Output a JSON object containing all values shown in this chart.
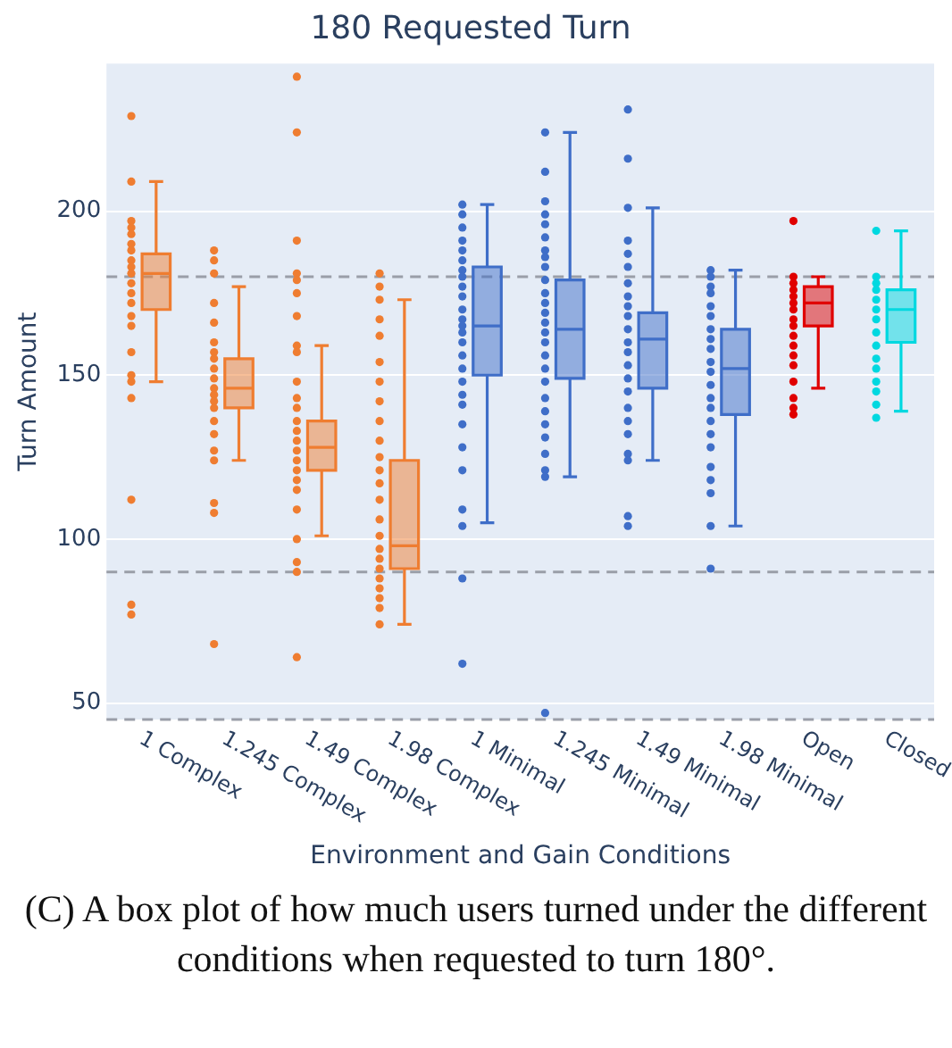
{
  "chart_data": {
    "type": "box",
    "title": "180 Requested Turn",
    "xlabel": "Environment and Gain Conditions",
    "ylabel": "Turn Amount",
    "categories": [
      "1 Complex",
      "1.245 Complex",
      "1.49 Complex",
      "1.98 Complex",
      "1 Minimal",
      "1.245 Minimal",
      "1.49 Minimal",
      "1.98 Minimal",
      "Open",
      "Closed"
    ],
    "colors": [
      "#ef7d31",
      "#ef7d31",
      "#ef7d31",
      "#ef7d31",
      "#3f6ec8",
      "#3f6ec8",
      "#3f6ec8",
      "#3f6ec8",
      "#e00000",
      "#00d8e0"
    ],
    "boxes": [
      {
        "low": 148,
        "q1": 170,
        "median": 181,
        "q3": 187,
        "high": 209
      },
      {
        "low": 124,
        "q1": 140,
        "median": 146,
        "q3": 155,
        "high": 177
      },
      {
        "low": 101,
        "q1": 121,
        "median": 128,
        "q3": 136,
        "high": 159
      },
      {
        "low": 74,
        "q1": 91,
        "median": 98,
        "q3": 124,
        "high": 173
      },
      {
        "low": 105,
        "q1": 150,
        "median": 165,
        "q3": 183,
        "high": 202
      },
      {
        "low": 119,
        "q1": 149,
        "median": 164,
        "q3": 179,
        "high": 224
      },
      {
        "low": 124,
        "q1": 146,
        "median": 161,
        "q3": 169,
        "high": 201
      },
      {
        "low": 104,
        "q1": 138,
        "median": 152,
        "q3": 164,
        "high": 182
      },
      {
        "low": 146,
        "q1": 165,
        "median": 172,
        "q3": 177,
        "high": 180
      },
      {
        "low": 139,
        "q1": 160,
        "median": 170,
        "q3": 176,
        "high": 194
      }
    ],
    "series": [
      {
        "type": "scatter",
        "color": "#ef7d31",
        "x": [
          "1 Complex",
          "1 Complex",
          "1 Complex",
          "1 Complex",
          "1 Complex",
          "1 Complex",
          "1 Complex",
          "1 Complex",
          "1 Complex",
          "1 Complex",
          "1 Complex",
          "1 Complex",
          "1 Complex",
          "1 Complex",
          "1 Complex",
          "1 Complex",
          "1 Complex",
          "1 Complex",
          "1 Complex",
          "1 Complex",
          "1 Complex",
          "1 Complex"
        ],
        "values": [
          229,
          209,
          197,
          195,
          193,
          190,
          188,
          185,
          183,
          181,
          178,
          175,
          172,
          168,
          165,
          157,
          150,
          148,
          143,
          112,
          80,
          77
        ]
      },
      {
        "type": "scatter",
        "color": "#ef7d31",
        "x": [
          "1.245 Complex",
          "1.245 Complex",
          "1.245 Complex",
          "1.245 Complex",
          "1.245 Complex",
          "1.245 Complex",
          "1.245 Complex",
          "1.245 Complex",
          "1.245 Complex",
          "1.245 Complex",
          "1.245 Complex",
          "1.245 Complex",
          "1.245 Complex",
          "1.245 Complex",
          "1.245 Complex",
          "1.245 Complex",
          "1.245 Complex",
          "1.245 Complex",
          "1.245 Complex",
          "1.245 Complex",
          "1.245 Complex"
        ],
        "values": [
          188,
          185,
          181,
          172,
          166,
          160,
          157,
          155,
          152,
          149,
          146,
          144,
          142,
          140,
          136,
          132,
          127,
          124,
          111,
          108,
          68
        ]
      },
      {
        "type": "scatter",
        "color": "#ef7d31",
        "x": [
          "1.49 Complex",
          "1.49 Complex",
          "1.49 Complex",
          "1.49 Complex",
          "1.49 Complex",
          "1.49 Complex",
          "1.49 Complex",
          "1.49 Complex",
          "1.49 Complex",
          "1.49 Complex",
          "1.49 Complex",
          "1.49 Complex",
          "1.49 Complex",
          "1.49 Complex",
          "1.49 Complex",
          "1.49 Complex",
          "1.49 Complex",
          "1.49 Complex",
          "1.49 Complex",
          "1.49 Complex",
          "1.49 Complex",
          "1.49 Complex",
          "1.49 Complex",
          "1.49 Complex",
          "1.49 Complex"
        ],
        "values": [
          241,
          224,
          191,
          181,
          179,
          175,
          168,
          159,
          157,
          148,
          143,
          140,
          136,
          133,
          130,
          127,
          124,
          121,
          118,
          115,
          109,
          100,
          93,
          90,
          64
        ]
      },
      {
        "type": "scatter",
        "color": "#ef7d31",
        "x": [
          "1.98 Complex",
          "1.98 Complex",
          "1.98 Complex",
          "1.98 Complex",
          "1.98 Complex",
          "1.98 Complex",
          "1.98 Complex",
          "1.98 Complex",
          "1.98 Complex",
          "1.98 Complex",
          "1.98 Complex",
          "1.98 Complex",
          "1.98 Complex",
          "1.98 Complex",
          "1.98 Complex",
          "1.98 Complex",
          "1.98 Complex",
          "1.98 Complex",
          "1.98 Complex",
          "1.98 Complex",
          "1.98 Complex",
          "1.98 Complex",
          "1.98 Complex",
          "1.98 Complex"
        ],
        "values": [
          181,
          177,
          173,
          167,
          162,
          154,
          148,
          142,
          136,
          130,
          125,
          121,
          117,
          112,
          106,
          101,
          97,
          94,
          91,
          88,
          85,
          82,
          79,
          74
        ]
      },
      {
        "type": "scatter",
        "color": "#3f6ec8",
        "x": [
          "1 Minimal",
          "1 Minimal",
          "1 Minimal",
          "1 Minimal",
          "1 Minimal",
          "1 Minimal",
          "1 Minimal",
          "1 Minimal",
          "1 Minimal",
          "1 Minimal",
          "1 Minimal",
          "1 Minimal",
          "1 Minimal",
          "1 Minimal",
          "1 Minimal",
          "1 Minimal",
          "1 Minimal",
          "1 Minimal",
          "1 Minimal",
          "1 Minimal",
          "1 Minimal",
          "1 Minimal",
          "1 Minimal",
          "1 Minimal",
          "1 Minimal",
          "1 Minimal",
          "1 Minimal"
        ],
        "values": [
          202,
          199,
          195,
          191,
          188,
          185,
          182,
          180,
          177,
          174,
          170,
          167,
          165,
          163,
          160,
          156,
          152,
          148,
          144,
          141,
          135,
          128,
          121,
          109,
          104,
          88,
          62
        ]
      },
      {
        "type": "scatter",
        "color": "#3f6ec8",
        "x": [
          "1.245 Minimal",
          "1.245 Minimal",
          "1.245 Minimal",
          "1.245 Minimal",
          "1.245 Minimal",
          "1.245 Minimal",
          "1.245 Minimal",
          "1.245 Minimal",
          "1.245 Minimal",
          "1.245 Minimal",
          "1.245 Minimal",
          "1.245 Minimal",
          "1.245 Minimal",
          "1.245 Minimal",
          "1.245 Minimal",
          "1.245 Minimal",
          "1.245 Minimal",
          "1.245 Minimal",
          "1.245 Minimal",
          "1.245 Minimal",
          "1.245 Minimal",
          "1.245 Minimal",
          "1.245 Minimal",
          "1.245 Minimal",
          "1.245 Minimal",
          "1.245 Minimal",
          "1.245 Minimal"
        ],
        "values": [
          224,
          212,
          203,
          199,
          196,
          192,
          188,
          186,
          183,
          179,
          175,
          172,
          169,
          166,
          163,
          160,
          156,
          152,
          148,
          143,
          139,
          135,
          131,
          126,
          121,
          119,
          47
        ]
      },
      {
        "type": "scatter",
        "color": "#3f6ec8",
        "x": [
          "1.49 Minimal",
          "1.49 Minimal",
          "1.49 Minimal",
          "1.49 Minimal",
          "1.49 Minimal",
          "1.49 Minimal",
          "1.49 Minimal",
          "1.49 Minimal",
          "1.49 Minimal",
          "1.49 Minimal",
          "1.49 Minimal",
          "1.49 Minimal",
          "1.49 Minimal",
          "1.49 Minimal",
          "1.49 Minimal",
          "1.49 Minimal",
          "1.49 Minimal",
          "1.49 Minimal",
          "1.49 Minimal",
          "1.49 Minimal",
          "1.49 Minimal",
          "1.49 Minimal",
          "1.49 Minimal"
        ],
        "values": [
          231,
          216,
          201,
          191,
          187,
          183,
          178,
          174,
          171,
          168,
          164,
          160,
          157,
          153,
          149,
          145,
          140,
          136,
          132,
          126,
          124,
          107,
          104
        ]
      },
      {
        "type": "scatter",
        "color": "#3f6ec8",
        "x": [
          "1.98 Minimal",
          "1.98 Minimal",
          "1.98 Minimal",
          "1.98 Minimal",
          "1.98 Minimal",
          "1.98 Minimal",
          "1.98 Minimal",
          "1.98 Minimal",
          "1.98 Minimal",
          "1.98 Minimal",
          "1.98 Minimal",
          "1.98 Minimal",
          "1.98 Minimal",
          "1.98 Minimal",
          "1.98 Minimal",
          "1.98 Minimal",
          "1.98 Minimal",
          "1.98 Minimal",
          "1.98 Minimal",
          "1.98 Minimal",
          "1.98 Minimal",
          "1.98 Minimal"
        ],
        "values": [
          182,
          180,
          177,
          175,
          171,
          168,
          164,
          161,
          158,
          154,
          151,
          147,
          143,
          140,
          136,
          132,
          128,
          122,
          118,
          114,
          104,
          91
        ]
      },
      {
        "type": "scatter",
        "color": "#e00000",
        "x": [
          "Open",
          "Open",
          "Open",
          "Open",
          "Open",
          "Open",
          "Open",
          "Open",
          "Open",
          "Open",
          "Open",
          "Open",
          "Open",
          "Open",
          "Open",
          "Open",
          "Open"
        ],
        "values": [
          197,
          180,
          178,
          176,
          174,
          172,
          170,
          167,
          165,
          162,
          159,
          156,
          153,
          148,
          143,
          140,
          138
        ]
      },
      {
        "type": "scatter",
        "color": "#00d8e0",
        "x": [
          "Closed",
          "Closed",
          "Closed",
          "Closed",
          "Closed",
          "Closed",
          "Closed",
          "Closed",
          "Closed",
          "Closed",
          "Closed",
          "Closed",
          "Closed",
          "Closed",
          "Closed"
        ],
        "values": [
          194,
          180,
          178,
          176,
          173,
          170,
          167,
          163,
          159,
          155,
          152,
          148,
          145,
          141,
          137
        ]
      }
    ],
    "ylim": [
      45,
      245
    ],
    "yticks": [
      50,
      100,
      150,
      200
    ],
    "grid": "y",
    "marker": "circle",
    "ref_lines": [
      {
        "axis": "y",
        "value": 180,
        "line_style": "dashed",
        "color": "#9a9ea8"
      },
      {
        "axis": "y",
        "value": 90,
        "line_style": "dashed",
        "color": "#9a9ea8"
      },
      {
        "axis": "y",
        "value": 45,
        "line_style": "dashed",
        "color": "#9a9ea8"
      }
    ],
    "annotations": [
      "(C) A box plot of how much users turned under the different conditions when requested to turn 180°."
    ]
  }
}
